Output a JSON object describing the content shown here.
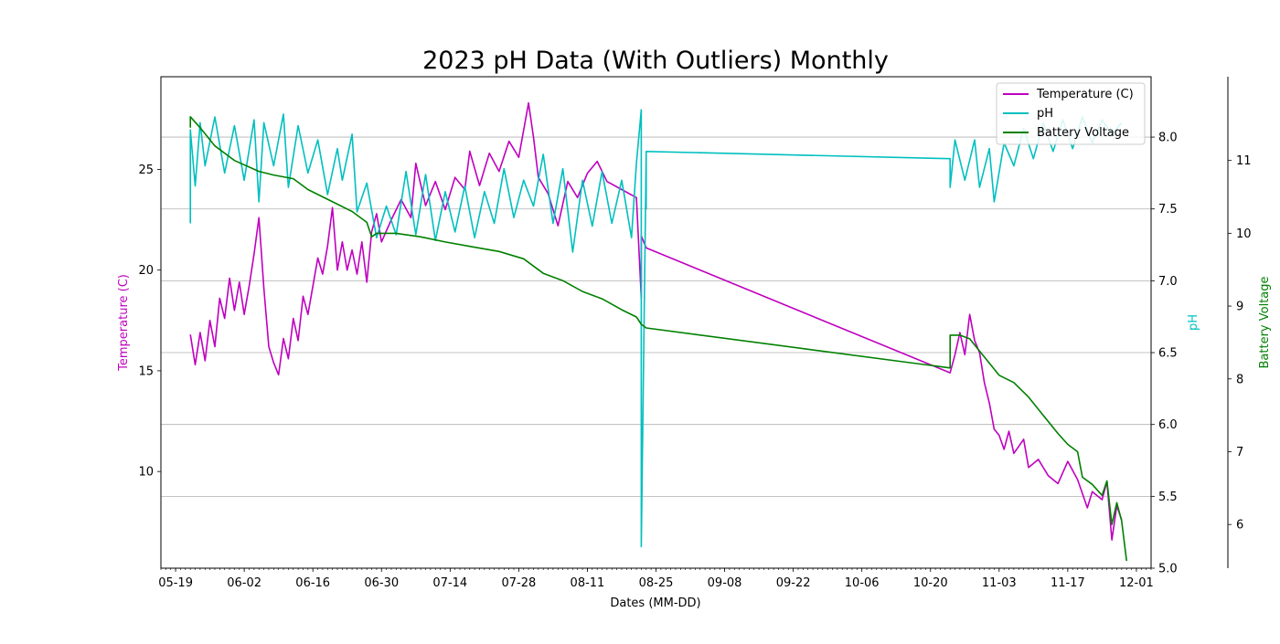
{
  "chart_data": {
    "type": "line",
    "title": "2023 pH Data (With Outliers) Monthly",
    "xlabel": "Dates (MM-DD)",
    "x_ticks": [
      "05-19",
      "06-02",
      "06-16",
      "06-30",
      "07-14",
      "07-28",
      "08-11",
      "08-25",
      "09-08",
      "09-22",
      "10-06",
      "10-20",
      "11-03",
      "11-17",
      "12-01"
    ],
    "x_range": [
      "2023-05-16",
      "2023-12-04"
    ],
    "grid": "horizontal (pH axis)",
    "legend_position": "top-right",
    "axes": {
      "temperature": {
        "label": "Temperature (C)",
        "ticks": [
          10,
          15,
          20,
          25
        ],
        "range": [
          5.2,
          29.6
        ],
        "color": "#bf00bf"
      },
      "ph": {
        "label": "pH",
        "ticks": [
          "5.0",
          "5.5",
          "6.0",
          "6.5",
          "7.0",
          "7.5",
          "8.0"
        ],
        "range": [
          5.0,
          8.42
        ],
        "color": "#00bfbf"
      },
      "battery": {
        "label": "Battery Voltage",
        "ticks": [
          6,
          7,
          8,
          9,
          10,
          11
        ],
        "range": [
          5.4,
          12.15
        ],
        "color": "#008000"
      }
    },
    "series": [
      {
        "name": "Temperature (C)",
        "axis": "temperature",
        "color": "#bf00bf",
        "points": [
          [
            "2023-05-22",
            16.8
          ],
          [
            "2023-05-23",
            15.3
          ],
          [
            "2023-05-24",
            16.9
          ],
          [
            "2023-05-25",
            15.5
          ],
          [
            "2023-05-26",
            17.5
          ],
          [
            "2023-05-27",
            16.2
          ],
          [
            "2023-05-28",
            18.6
          ],
          [
            "2023-05-29",
            17.6
          ],
          [
            "2023-05-30",
            19.6
          ],
          [
            "2023-05-31",
            18.0
          ],
          [
            "2023-06-01",
            19.4
          ],
          [
            "2023-06-02",
            17.8
          ],
          [
            "2023-06-03",
            19.2
          ],
          [
            "2023-06-04",
            20.8
          ],
          [
            "2023-06-05",
            22.6
          ],
          [
            "2023-06-06",
            19.1
          ],
          [
            "2023-06-07",
            16.2
          ],
          [
            "2023-06-08",
            15.4
          ],
          [
            "2023-06-09",
            14.8
          ],
          [
            "2023-06-10",
            16.6
          ],
          [
            "2023-06-11",
            15.6
          ],
          [
            "2023-06-12",
            17.6
          ],
          [
            "2023-06-13",
            16.5
          ],
          [
            "2023-06-14",
            18.7
          ],
          [
            "2023-06-15",
            17.8
          ],
          [
            "2023-06-16",
            19.2
          ],
          [
            "2023-06-17",
            20.6
          ],
          [
            "2023-06-18",
            19.8
          ],
          [
            "2023-06-19",
            21.2
          ],
          [
            "2023-06-20",
            23.1
          ],
          [
            "2023-06-21",
            20.0
          ],
          [
            "2023-06-22",
            21.4
          ],
          [
            "2023-06-23",
            20.0
          ],
          [
            "2023-06-24",
            21.0
          ],
          [
            "2023-06-25",
            19.8
          ],
          [
            "2023-06-26",
            21.4
          ],
          [
            "2023-06-27",
            19.4
          ],
          [
            "2023-06-28",
            21.9
          ],
          [
            "2023-06-29",
            22.8
          ],
          [
            "2023-06-30",
            21.4
          ],
          [
            "2023-07-02",
            22.5
          ],
          [
            "2023-07-04",
            23.5
          ],
          [
            "2023-07-06",
            22.6
          ],
          [
            "2023-07-07",
            25.3
          ],
          [
            "2023-07-09",
            23.2
          ],
          [
            "2023-07-11",
            24.4
          ],
          [
            "2023-07-13",
            23.0
          ],
          [
            "2023-07-15",
            24.6
          ],
          [
            "2023-07-17",
            24.0
          ],
          [
            "2023-07-18",
            25.9
          ],
          [
            "2023-07-20",
            24.2
          ],
          [
            "2023-07-22",
            25.8
          ],
          [
            "2023-07-24",
            24.9
          ],
          [
            "2023-07-26",
            26.4
          ],
          [
            "2023-07-28",
            25.6
          ],
          [
            "2023-07-30",
            28.3
          ],
          [
            "2023-07-31",
            26.6
          ],
          [
            "2023-08-01",
            24.6
          ],
          [
            "2023-08-03",
            23.8
          ],
          [
            "2023-08-05",
            22.2
          ],
          [
            "2023-08-07",
            24.4
          ],
          [
            "2023-08-09",
            23.6
          ],
          [
            "2023-08-11",
            24.8
          ],
          [
            "2023-08-13",
            25.4
          ],
          [
            "2023-08-15",
            24.4
          ],
          [
            "2023-08-18",
            24.0
          ],
          [
            "2023-08-21",
            23.6
          ],
          [
            "2023-08-22",
            18.6
          ],
          [
            "2023-08-22",
            21.7
          ],
          [
            "2023-08-23",
            21.1
          ],
          [
            "2023-10-24",
            14.9
          ],
          [
            "2023-10-25",
            15.8
          ],
          [
            "2023-10-26",
            16.9
          ],
          [
            "2023-10-27",
            15.8
          ],
          [
            "2023-10-28",
            17.8
          ],
          [
            "2023-10-29",
            16.5
          ],
          [
            "2023-10-30",
            15.9
          ],
          [
            "2023-10-31",
            14.4
          ],
          [
            "2023-11-01",
            13.4
          ],
          [
            "2023-11-02",
            12.1
          ],
          [
            "2023-11-03",
            11.8
          ],
          [
            "2023-11-04",
            11.1
          ],
          [
            "2023-11-05",
            12.0
          ],
          [
            "2023-11-06",
            10.9
          ],
          [
            "2023-11-08",
            11.6
          ],
          [
            "2023-11-09",
            10.2
          ],
          [
            "2023-11-11",
            10.6
          ],
          [
            "2023-11-13",
            9.8
          ],
          [
            "2023-11-15",
            9.4
          ],
          [
            "2023-11-17",
            10.5
          ],
          [
            "2023-11-19",
            9.6
          ],
          [
            "2023-11-21",
            8.2
          ],
          [
            "2023-11-22",
            9.0
          ],
          [
            "2023-11-24",
            8.6
          ],
          [
            "2023-11-25",
            9.5
          ],
          [
            "2023-11-26",
            6.6
          ],
          [
            "2023-11-27",
            8.3
          ],
          [
            "2023-11-28",
            7.6
          ]
        ]
      },
      {
        "name": "pH",
        "axis": "ph",
        "color": "#00bfbf",
        "points": [
          [
            "2023-05-22",
            7.4
          ],
          [
            "2023-05-22",
            8.05
          ],
          [
            "2023-05-23",
            7.66
          ],
          [
            "2023-05-24",
            8.1
          ],
          [
            "2023-05-25",
            7.8
          ],
          [
            "2023-05-27",
            8.14
          ],
          [
            "2023-05-29",
            7.75
          ],
          [
            "2023-05-31",
            8.08
          ],
          [
            "2023-06-02",
            7.7
          ],
          [
            "2023-06-04",
            8.12
          ],
          [
            "2023-06-05",
            7.55
          ],
          [
            "2023-06-06",
            8.1
          ],
          [
            "2023-06-08",
            7.8
          ],
          [
            "2023-06-10",
            8.16
          ],
          [
            "2023-06-11",
            7.65
          ],
          [
            "2023-06-13",
            8.08
          ],
          [
            "2023-06-15",
            7.75
          ],
          [
            "2023-06-17",
            7.98
          ],
          [
            "2023-06-19",
            7.6
          ],
          [
            "2023-06-21",
            7.92
          ],
          [
            "2023-06-22",
            7.7
          ],
          [
            "2023-06-24",
            8.02
          ],
          [
            "2023-06-25",
            7.48
          ],
          [
            "2023-06-27",
            7.68
          ],
          [
            "2023-06-29",
            7.3
          ],
          [
            "2023-07-01",
            7.52
          ],
          [
            "2023-07-03",
            7.32
          ],
          [
            "2023-07-05",
            7.76
          ],
          [
            "2023-07-07",
            7.32
          ],
          [
            "2023-07-09",
            7.74
          ],
          [
            "2023-07-11",
            7.28
          ],
          [
            "2023-07-13",
            7.62
          ],
          [
            "2023-07-15",
            7.34
          ],
          [
            "2023-07-17",
            7.66
          ],
          [
            "2023-07-19",
            7.3
          ],
          [
            "2023-07-21",
            7.62
          ],
          [
            "2023-07-23",
            7.4
          ],
          [
            "2023-07-25",
            7.78
          ],
          [
            "2023-07-27",
            7.44
          ],
          [
            "2023-07-29",
            7.7
          ],
          [
            "2023-07-31",
            7.52
          ],
          [
            "2023-08-02",
            7.88
          ],
          [
            "2023-08-04",
            7.4
          ],
          [
            "2023-08-06",
            7.78
          ],
          [
            "2023-08-08",
            7.2
          ],
          [
            "2023-08-10",
            7.7
          ],
          [
            "2023-08-12",
            7.38
          ],
          [
            "2023-08-14",
            7.76
          ],
          [
            "2023-08-16",
            7.4
          ],
          [
            "2023-08-18",
            7.7
          ],
          [
            "2023-08-20",
            7.3
          ],
          [
            "2023-08-21",
            7.82
          ],
          [
            "2023-08-22",
            8.19
          ],
          [
            "2023-08-22",
            5.15
          ],
          [
            "2023-08-23",
            7.9
          ],
          [
            "2023-08-23",
            7.5
          ],
          [
            "2023-08-23",
            7.9
          ],
          [
            "2023-10-24",
            7.85
          ],
          [
            "2023-10-24",
            7.65
          ],
          [
            "2023-10-25",
            7.98
          ],
          [
            "2023-10-27",
            7.7
          ],
          [
            "2023-10-29",
            7.98
          ],
          [
            "2023-10-30",
            7.65
          ],
          [
            "2023-11-01",
            7.92
          ],
          [
            "2023-11-02",
            7.55
          ],
          [
            "2023-11-04",
            7.96
          ],
          [
            "2023-11-06",
            7.8
          ],
          [
            "2023-11-08",
            8.06
          ],
          [
            "2023-11-10",
            7.85
          ],
          [
            "2023-11-12",
            8.1
          ],
          [
            "2023-11-14",
            7.9
          ],
          [
            "2023-11-16",
            8.12
          ],
          [
            "2023-11-18",
            7.92
          ],
          [
            "2023-11-20",
            8.14
          ],
          [
            "2023-11-22",
            7.96
          ],
          [
            "2023-11-24",
            8.12
          ],
          [
            "2023-11-26",
            8.02
          ],
          [
            "2023-11-28",
            8.1
          ]
        ]
      },
      {
        "name": "Battery Voltage",
        "axis": "battery",
        "color": "#008000",
        "points": [
          [
            "2023-05-22",
            11.45
          ],
          [
            "2023-05-22",
            11.6
          ],
          [
            "2023-05-24",
            11.45
          ],
          [
            "2023-05-27",
            11.2
          ],
          [
            "2023-05-31",
            11.0
          ],
          [
            "2023-06-05",
            10.85
          ],
          [
            "2023-06-08",
            10.8
          ],
          [
            "2023-06-12",
            10.75
          ],
          [
            "2023-06-15",
            10.6
          ],
          [
            "2023-06-18",
            10.5
          ],
          [
            "2023-06-21",
            10.4
          ],
          [
            "2023-06-24",
            10.3
          ],
          [
            "2023-06-27",
            10.15
          ],
          [
            "2023-06-28",
            9.95
          ],
          [
            "2023-06-29",
            10.0
          ],
          [
            "2023-07-03",
            10.0
          ],
          [
            "2023-07-08",
            9.95
          ],
          [
            "2023-07-13",
            9.88
          ],
          [
            "2023-07-18",
            9.82
          ],
          [
            "2023-07-24",
            9.75
          ],
          [
            "2023-07-29",
            9.65
          ],
          [
            "2023-08-02",
            9.45
          ],
          [
            "2023-08-06",
            9.35
          ],
          [
            "2023-08-10",
            9.2
          ],
          [
            "2023-08-14",
            9.1
          ],
          [
            "2023-08-18",
            8.95
          ],
          [
            "2023-08-21",
            8.85
          ],
          [
            "2023-08-22",
            8.75
          ],
          [
            "2023-08-23",
            8.7
          ],
          [
            "2023-10-24",
            8.15
          ],
          [
            "2023-10-24",
            8.6
          ],
          [
            "2023-10-26",
            8.6
          ],
          [
            "2023-10-28",
            8.55
          ],
          [
            "2023-10-31",
            8.3
          ],
          [
            "2023-11-03",
            8.05
          ],
          [
            "2023-11-06",
            7.95
          ],
          [
            "2023-11-09",
            7.75
          ],
          [
            "2023-11-12",
            7.5
          ],
          [
            "2023-11-15",
            7.25
          ],
          [
            "2023-11-17",
            7.1
          ],
          [
            "2023-11-19",
            7.0
          ],
          [
            "2023-11-20",
            6.65
          ],
          [
            "2023-11-22",
            6.55
          ],
          [
            "2023-11-24",
            6.4
          ],
          [
            "2023-11-25",
            6.6
          ],
          [
            "2023-11-26",
            6.0
          ],
          [
            "2023-11-27",
            6.3
          ],
          [
            "2023-11-28",
            6.05
          ],
          [
            "2023-11-29",
            5.5
          ]
        ]
      }
    ]
  }
}
